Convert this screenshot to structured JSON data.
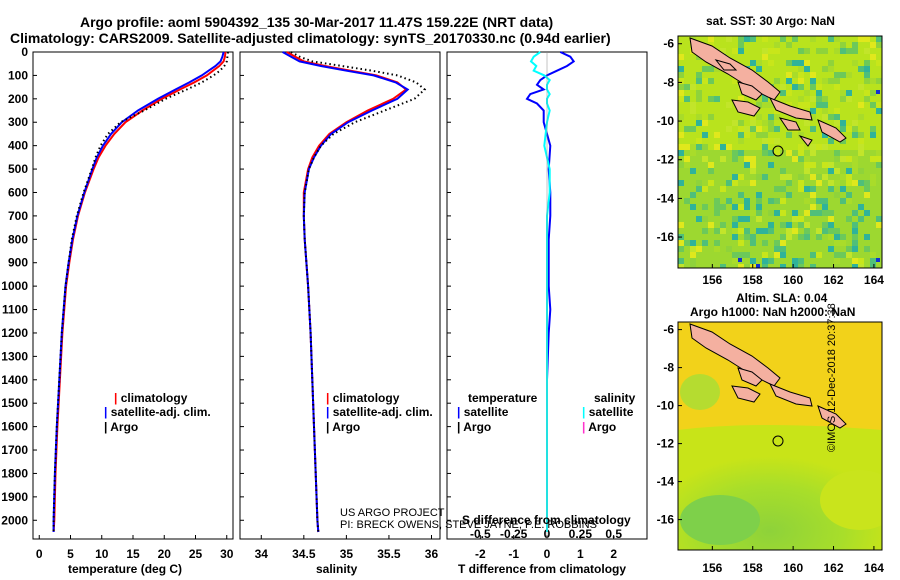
{
  "header": {
    "title_line1": "Argo profile: aoml 5904392_135 30-Mar-2017 11.47S 159.22E (NRT data)",
    "title_line2": "Climatology: CARS2009. Satellite-adjusted climatology: synTS_20170330.nc (0.94d earlier)"
  },
  "colors": {
    "climatology": "#ff0000",
    "satellite": "#0000ff",
    "argo": "#000000",
    "sat_salinity": "#00ffff",
    "argo_salinity": "#ff33cc"
  },
  "chart_data": [
    {
      "type": "line",
      "name": "temperature",
      "xlabel": "temperature (deg C)",
      "xlim": [
        -1,
        31
      ],
      "ylim": [
        2080,
        0
      ],
      "xticks": [
        "0",
        "5",
        "10",
        "15",
        "20",
        "25",
        "30"
      ],
      "yticks": [
        "0",
        "100",
        "200",
        "300",
        "400",
        "500",
        "600",
        "700",
        "800",
        "900",
        "1000",
        "1100",
        "1200",
        "1300",
        "1400",
        "1500",
        "1600",
        "1700",
        "1800",
        "1900",
        "2000"
      ],
      "depth": [
        0,
        20,
        40,
        60,
        80,
        100,
        130,
        160,
        200,
        250,
        300,
        350,
        400,
        450,
        500,
        600,
        700,
        800,
        900,
        1000,
        1200,
        1400,
        1600,
        1800,
        2000,
        2050
      ],
      "series": [
        {
          "name": "climatology",
          "values": [
            29.8,
            29.7,
            29.5,
            28.8,
            27.8,
            26.8,
            24.8,
            22.5,
            19.6,
            16.5,
            13.8,
            12.0,
            10.6,
            9.5,
            8.7,
            7.3,
            6.2,
            5.4,
            4.8,
            4.3,
            3.7,
            3.3,
            2.9,
            2.6,
            2.4,
            2.3
          ]
        },
        {
          "name": "satellite-adj. clim.",
          "values": [
            29.5,
            29.3,
            29.0,
            28.2,
            27.1,
            26.0,
            24.0,
            21.8,
            19.0,
            15.8,
            13.2,
            11.5,
            10.2,
            9.2,
            8.5,
            7.2,
            6.1,
            5.3,
            4.7,
            4.2,
            3.6,
            3.2,
            2.8,
            2.5,
            2.3,
            2.3
          ]
        },
        {
          "name": "Argo",
          "values": [
            30.2,
            30.1,
            30.0,
            29.6,
            28.9,
            27.9,
            26.0,
            23.6,
            20.2,
            16.8,
            13.0,
            11.0,
            9.8,
            9.0,
            8.4,
            7.1,
            6.0,
            5.2,
            4.7,
            4.2,
            3.6,
            3.2,
            2.8,
            2.5,
            2.3,
            2.3
          ]
        }
      ],
      "legend": [
        "climatology",
        "satellite-adj. clim.",
        "Argo"
      ]
    },
    {
      "type": "line",
      "name": "salinity",
      "xlabel": "salinity",
      "xlim": [
        33.75,
        36.1
      ],
      "ylim": [
        2080,
        0
      ],
      "xticks": [
        "34",
        "34.5",
        "35",
        "35.5",
        "36"
      ],
      "depth": [
        0,
        20,
        40,
        60,
        80,
        100,
        130,
        160,
        200,
        250,
        300,
        350,
        400,
        450,
        500,
        600,
        700,
        800,
        900,
        1000,
        1200,
        1400,
        1600,
        1800,
        2000,
        2050
      ],
      "series": [
        {
          "name": "climatology",
          "values": [
            34.3,
            34.4,
            34.5,
            34.75,
            35.05,
            35.35,
            35.6,
            35.7,
            35.55,
            35.25,
            35.0,
            34.8,
            34.68,
            34.6,
            34.55,
            34.5,
            34.5,
            34.51,
            34.53,
            34.55,
            34.58,
            34.6,
            34.62,
            34.64,
            34.66,
            34.67
          ]
        },
        {
          "name": "satellite-adj. clim.",
          "values": [
            34.25,
            34.35,
            34.45,
            34.7,
            35.0,
            35.32,
            35.58,
            35.72,
            35.6,
            35.3,
            35.02,
            34.82,
            34.7,
            34.62,
            34.56,
            34.51,
            34.5,
            34.51,
            34.53,
            34.55,
            34.58,
            34.6,
            34.62,
            34.64,
            34.66,
            34.67
          ]
        },
        {
          "name": "Argo",
          "values": [
            34.35,
            34.45,
            34.6,
            34.95,
            35.3,
            35.6,
            35.82,
            35.92,
            35.8,
            35.45,
            35.1,
            34.85,
            34.7,
            34.62,
            34.56,
            34.51,
            34.5,
            34.51,
            34.53,
            34.55,
            34.58,
            34.6,
            34.62,
            34.64,
            34.66,
            34.67
          ]
        }
      ],
      "legend": [
        "climatology",
        "satellite-adj. clim.",
        "Argo"
      ]
    },
    {
      "type": "line",
      "name": "difference",
      "xlabel": "T difference from climatology",
      "xlabel_top": "S difference from climatology",
      "xlim": [
        -3,
        3
      ],
      "ylim": [
        2080,
        0
      ],
      "xticks": [
        "-2",
        "-1",
        "0",
        "1",
        "2"
      ],
      "xticks_s": [
        "-0.5",
        "-0.25",
        "0",
        "0.25",
        "0.5"
      ],
      "depth": [
        0,
        20,
        40,
        60,
        80,
        100,
        120,
        140,
        160,
        180,
        200,
        220,
        250,
        300,
        400,
        500,
        600,
        700,
        800,
        1000,
        1100,
        1200,
        1400,
        1600,
        1800,
        2000,
        2050
      ],
      "series": [
        {
          "name": "temperature satellite",
          "values": [
            0.4,
            0.7,
            0.8,
            0.6,
            0.3,
            0.0,
            -0.2,
            -0.3,
            -0.1,
            -0.5,
            -0.6,
            -0.3,
            -0.1,
            -0.1,
            0.1,
            0.05,
            0.1,
            0.1,
            0.05,
            0.05,
            0.1,
            0.05,
            0.0,
            0.0,
            0.0,
            0.0,
            0.0
          ]
        },
        {
          "name": "salinity satellite",
          "values": [
            -0.05,
            -0.1,
            -0.12,
            -0.08,
            -0.1,
            -0.02,
            0.02,
            0.0,
            0.0,
            0.02,
            0.0,
            0.0,
            0.02,
            0.0,
            -0.02,
            0.02,
            0.02,
            0.0,
            0.0,
            0.0,
            0.0,
            0.0,
            0.0,
            0.0,
            0.0,
            0.0,
            0.0
          ]
        }
      ],
      "legend_left_title": "temperature",
      "legend_right_title": "salinity",
      "legend_left": [
        "satellite",
        "Argo"
      ],
      "legend_right": [
        "satellite",
        "Argo"
      ]
    }
  ],
  "credits": {
    "line1": "US ARGO PROJECT",
    "line2": "PI: BRECK OWENS, STEVE JAYNE, P.E. ROBBINS"
  },
  "maps": {
    "sst": {
      "title": "sat. SST: 30 Argo: NaN",
      "xticks": [
        "156",
        "158",
        "160",
        "162",
        "164"
      ],
      "yticks": [
        "-6",
        "-8",
        "-10",
        "-12",
        "-14",
        "-16"
      ],
      "marker": {
        "lon": 159.22,
        "lat": -11.47
      }
    },
    "sla": {
      "title1": "Altim. SLA: 0.04",
      "title2": "Argo h1000: NaN h2000: NaN",
      "xticks": [
        "156",
        "158",
        "160",
        "162",
        "164"
      ],
      "yticks": [
        "-6",
        "-8",
        "-10",
        "-12",
        "-14",
        "-16"
      ],
      "marker": {
        "lon": 159.22,
        "lat": -11.47
      }
    }
  },
  "footer": {
    "stamp": "©IMOS 12-Dec-2018 20:37:38"
  }
}
